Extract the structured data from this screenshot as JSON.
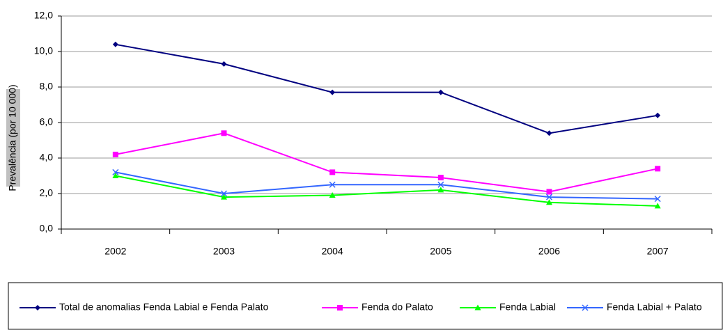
{
  "chart_data": {
    "type": "line",
    "y_label": "Prevalência (por 10 000)",
    "categories": [
      "2002",
      "2003",
      "2004",
      "2005",
      "2006",
      "2007"
    ],
    "series": [
      {
        "name": "Total de anomalias Fenda Labial e Fenda Palato",
        "color": "#000080",
        "marker": "diamond",
        "values": [
          10.4,
          9.3,
          7.7,
          7.7,
          5.4,
          6.4
        ]
      },
      {
        "name": "Fenda do Palato",
        "color": "#ff00ff",
        "marker": "square",
        "values": [
          4.2,
          5.4,
          3.2,
          2.9,
          2.1,
          3.4
        ]
      },
      {
        "name": "Fenda Labial",
        "color": "#00ff00",
        "marker": "triangle",
        "values": [
          3.0,
          1.8,
          1.9,
          2.2,
          1.5,
          1.3
        ]
      },
      {
        "name": "Fenda Labial + Palato",
        "color": "#3366ff",
        "marker": "x",
        "values": [
          3.2,
          2.0,
          2.5,
          2.5,
          1.8,
          1.7
        ]
      }
    ],
    "ylim": [
      0,
      12
    ],
    "yticks": [
      {
        "value": 0,
        "label": "0,0"
      },
      {
        "value": 2,
        "label": "2,0"
      },
      {
        "value": 4,
        "label": "4,0"
      },
      {
        "value": 6,
        "label": "6,0"
      },
      {
        "value": 8,
        "label": "8,0"
      },
      {
        "value": 10,
        "label": "10,0"
      },
      {
        "value": 12,
        "label": "12,0"
      }
    ],
    "grid": true,
    "legend": "bottom"
  }
}
